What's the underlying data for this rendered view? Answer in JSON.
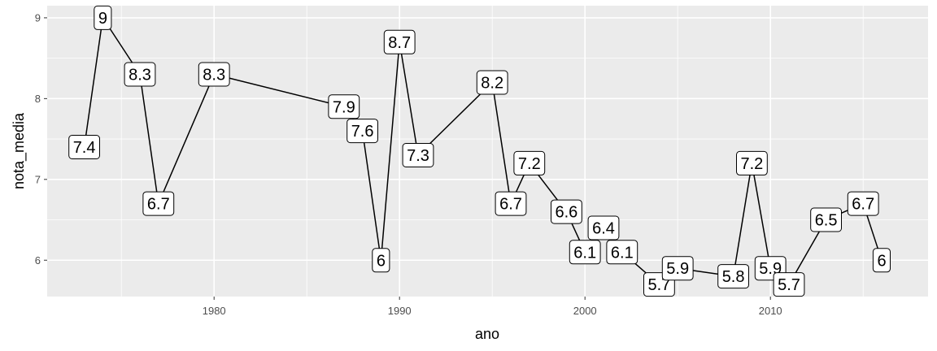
{
  "chart_data": {
    "type": "line",
    "title": "",
    "xlabel": "ano",
    "ylabel": "nota_media",
    "xlim": [
      1971,
      2018.5
    ],
    "ylim": [
      5.55,
      9.15
    ],
    "xticks": [
      1980,
      1990,
      2000,
      2010
    ],
    "yticks": [
      6,
      7,
      8,
      9
    ],
    "grid": true,
    "background": "#ebebeb",
    "line_color": "#000000",
    "series": [
      {
        "x": [
          1973,
          1974,
          1976,
          1977,
          1980,
          1987,
          1988,
          1989,
          1990,
          1991,
          1995,
          1996,
          1997,
          1999,
          2000,
          2001,
          2002,
          2004,
          2005,
          2008,
          2009,
          2010,
          2011,
          2013,
          2015,
          2016
        ],
        "values": [
          7.4,
          9,
          8.3,
          6.7,
          8.3,
          7.9,
          7.6,
          6,
          8.7,
          7.3,
          8.2,
          6.7,
          7.2,
          6.6,
          6.1,
          6.4,
          6.1,
          5.7,
          5.9,
          5.8,
          7.2,
          5.9,
          5.7,
          6.5,
          6.7,
          6
        ],
        "labels": [
          "7.4",
          "9",
          "8.3",
          "6.7",
          "8.3",
          "7.9",
          "7.6",
          "6",
          "8.7",
          "7.3",
          "8.2",
          "6.7",
          "7.2",
          "6.6",
          "6.1",
          "6.4",
          "6.1",
          "5.7",
          "5.9",
          "5.8",
          "7.2",
          "5.9",
          "5.7",
          "6.5",
          "6.7",
          "6"
        ]
      }
    ]
  }
}
